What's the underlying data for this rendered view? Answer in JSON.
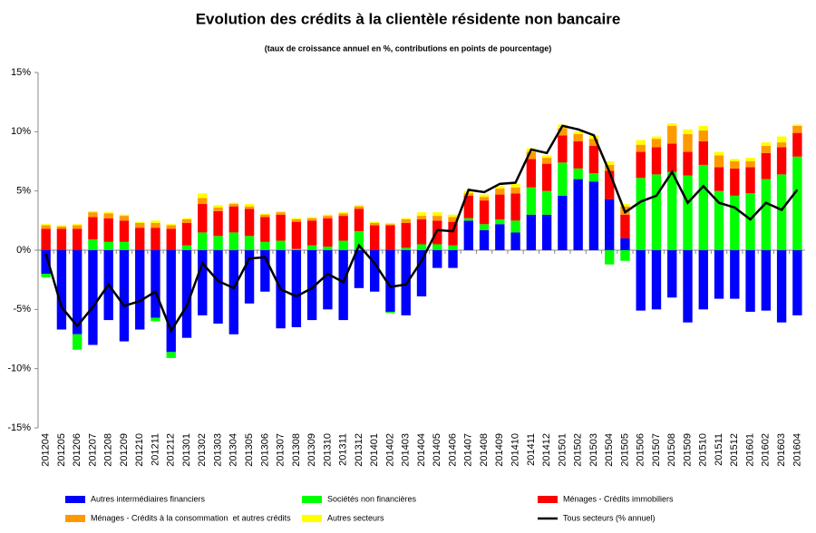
{
  "chart_data": {
    "type": "bar",
    "title": "Evolution des crédits à la clientèle résidente non bancaire",
    "subtitle": "(taux de croissance annuel en %, contributions en points de pourcentage)",
    "stacked": true,
    "categories": [
      "201204",
      "201205",
      "201206",
      "201207",
      "201208",
      "201209",
      "201210",
      "201211",
      "201212",
      "201301",
      "201302",
      "201303",
      "201304",
      "201305",
      "201306",
      "201307",
      "201308",
      "201309",
      "201310",
      "201311",
      "201312",
      "201401",
      "201402",
      "201403",
      "201404",
      "201405",
      "201406",
      "201407",
      "201408",
      "201409",
      "201410",
      "201411",
      "201412",
      "201501",
      "201502",
      "201503",
      "201504",
      "201505",
      "201506",
      "201507",
      "201508",
      "201509",
      "201510",
      "201511",
      "201512",
      "201601",
      "201602",
      "201603",
      "201604"
    ],
    "series": [
      {
        "name": "Autres intermédiaires financiers",
        "color": "#0000ff",
        "values": [
          -2.0,
          -6.7,
          -7.1,
          -8.0,
          -5.9,
          -7.7,
          -6.7,
          -5.7,
          -8.6,
          -7.4,
          -5.5,
          -6.2,
          -7.1,
          -4.5,
          -3.5,
          -6.6,
          -6.5,
          -5.9,
          -5.0,
          -5.9,
          -3.2,
          -3.5,
          -5.2,
          -5.5,
          -3.9,
          -1.5,
          -1.5,
          2.5,
          1.7,
          2.2,
          1.5,
          3.0,
          3.0,
          4.6,
          6.0,
          5.8,
          4.3,
          1.0,
          -5.1,
          -5.0,
          -4.0,
          -6.1,
          -5.0,
          -4.1,
          -4.1,
          -5.2,
          -5.1,
          -6.1,
          -5.5
        ]
      },
      {
        "name": "Sociétés non financières",
        "color": "#00ff00",
        "values": [
          -0.3,
          0,
          -1.3,
          0.9,
          0.7,
          0.7,
          0,
          -0.3,
          -0.5,
          0.4,
          1.5,
          1.2,
          1.5,
          1.2,
          0.7,
          0.8,
          0.1,
          0.4,
          0.3,
          0.8,
          1.6,
          0,
          -0.1,
          0.2,
          0.5,
          0.5,
          0.4,
          0.2,
          0.5,
          0.4,
          1.0,
          2.3,
          2.0,
          2.8,
          0.9,
          0.7,
          -1.2,
          -0.9,
          6.1,
          6.4,
          6.6,
          6.3,
          7.2,
          5.0,
          4.6,
          4.8,
          6.0,
          6.4,
          7.9
        ]
      },
      {
        "name": "Ménages - Crédits immobiliers",
        "color": "#ff0000",
        "values": [
          1.8,
          1.8,
          1.8,
          1.9,
          2.0,
          1.8,
          1.9,
          1.9,
          1.8,
          1.9,
          2.4,
          2.1,
          2.2,
          2.3,
          2.1,
          2.2,
          2.3,
          2.1,
          2.4,
          2.1,
          1.9,
          2.1,
          2.1,
          2.1,
          2.1,
          2.0,
          2.0,
          1.9,
          2.0,
          2.1,
          2.3,
          2.4,
          2.3,
          2.3,
          2.3,
          2.3,
          2.4,
          2.0,
          2.2,
          2.3,
          2.4,
          2.0,
          2.0,
          2.0,
          2.3,
          2.2,
          2.2,
          2.3,
          2.0
        ]
      },
      {
        "name": "Ménages - Crédits à la consommation  et autres crédits",
        "color": "#ff9900",
        "values": [
          0.3,
          0.2,
          0.3,
          0.4,
          0.4,
          0.4,
          0.4,
          0.4,
          0.3,
          0.3,
          0.5,
          0.3,
          0.2,
          0.2,
          0.2,
          0.2,
          0.2,
          0.2,
          0.2,
          0.2,
          0.2,
          0.2,
          0.1,
          0.3,
          0.3,
          0.4,
          0.4,
          0.2,
          0.3,
          0.5,
          0.5,
          0.6,
          0.5,
          0.6,
          0.6,
          0.6,
          0.5,
          0.7,
          0.6,
          0.7,
          1.5,
          1.5,
          0.9,
          1.0,
          0.6,
          0.5,
          0.6,
          0.4,
          0.6
        ]
      },
      {
        "name": "Autres secteurs",
        "color": "#ffff00",
        "values": [
          0.1,
          0.1,
          0.1,
          0.1,
          0.1,
          0.1,
          0.1,
          0.2,
          0.1,
          0.1,
          0.4,
          0.2,
          0.1,
          0.2,
          0.1,
          0.1,
          0.1,
          0.1,
          0.1,
          0.1,
          0.1,
          0.1,
          0.1,
          0.1,
          0.3,
          0.3,
          0.2,
          0.2,
          0.2,
          0.2,
          0.3,
          0.3,
          0.2,
          0.3,
          0.2,
          0.3,
          0.3,
          0.2,
          0.4,
          0.2,
          0.2,
          0.4,
          0.4,
          0.3,
          0.2,
          0.3,
          0.3,
          0.5,
          0.1
        ]
      },
      {
        "name": "Tous secteurs (% annuel)",
        "color": "#000000",
        "type": "line",
        "values": [
          -0.3,
          -4.8,
          -6.4,
          -4.8,
          -2.9,
          -4.7,
          -4.3,
          -3.5,
          -6.8,
          -4.7,
          -1.1,
          -2.6,
          -3.2,
          -0.7,
          -0.6,
          -3.3,
          -3.9,
          -3.2,
          -2.0,
          -2.7,
          0.4,
          -1.1,
          -3.1,
          -2.9,
          -0.9,
          1.7,
          1.6,
          5.1,
          4.9,
          5.6,
          5.7,
          8.5,
          8.2,
          10.5,
          10.2,
          9.7,
          6.6,
          3.2,
          4.1,
          4.6,
          6.6,
          4.0,
          5.4,
          4.0,
          3.6,
          2.6,
          4.0,
          3.4,
          5.1
        ]
      }
    ],
    "ylim": [
      -15,
      15
    ],
    "yticks": [
      {
        "value": -15,
        "label": "-15%"
      },
      {
        "value": -10,
        "label": "-10%"
      },
      {
        "value": -5,
        "label": "-5%"
      },
      {
        "value": 0,
        "label": "0%"
      },
      {
        "value": 5,
        "label": "5%"
      },
      {
        "value": 10,
        "label": "10%"
      },
      {
        "value": 15,
        "label": "15%"
      }
    ]
  }
}
